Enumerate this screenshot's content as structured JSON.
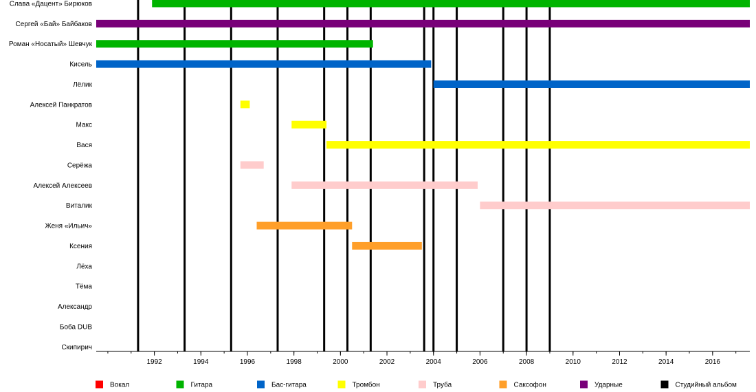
{
  "chart_data": {
    "type": "timeline",
    "x_range": [
      1989.5,
      2017.6
    ],
    "x_ticks": [
      1992,
      1994,
      1996,
      1998,
      2000,
      2002,
      2004,
      2006,
      2008,
      2010,
      2012,
      2014,
      2016
    ],
    "tick_labels": [
      "1992",
      "1994",
      "1996",
      "1998",
      "2000",
      "2002",
      "2004",
      "2006",
      "2008",
      "2010",
      "2012",
      "2014",
      "2016"
    ],
    "minor_ticks_per_year": true,
    "album_lines": [
      1991.3,
      1993.3,
      1995.3,
      1997.3,
      1999.3,
      2000.3,
      2001.3,
      2003.6,
      2004.0,
      2005.0,
      2007.0,
      2008.0,
      2009.0
    ],
    "members": [
      {
        "name": "Слава «Дацент» Бирюков",
        "role": "guitar",
        "start": 1991.9,
        "end": 2017.6
      },
      {
        "name": "Сергей «Бай» Байбаков",
        "role": "drums",
        "start": 1989.5,
        "end": 2017.6
      },
      {
        "name": "Роман «Носатый» Шевчук",
        "role": "guitar",
        "start": 1989.5,
        "end": 2001.4
      },
      {
        "name": "Кисель",
        "role": "bass",
        "start": 1989.5,
        "end": 2003.9
      },
      {
        "name": "Лёлик",
        "role": "bass",
        "start": 2004.0,
        "end": 2017.6
      },
      {
        "name": "Алексей Панкратов",
        "role": "trombone",
        "start": 1995.7,
        "end": 1996.1
      },
      {
        "name": "Макс",
        "role": "trombone",
        "start": 1997.9,
        "end": 1999.4
      },
      {
        "name": "Вася",
        "role": "trombone",
        "start": 1999.4,
        "end": 2017.6
      },
      {
        "name": "Серёжа",
        "role": "trumpet",
        "start": 1995.7,
        "end": 1996.7
      },
      {
        "name": "Алексей Алексеев",
        "role": "trumpet",
        "start": 1997.9,
        "end": 2005.9
      },
      {
        "name": "Виталик",
        "role": "trumpet",
        "start": 2006.0,
        "end": 2017.6
      },
      {
        "name": "Женя «Ильич»",
        "role": "sax",
        "start": 1996.4,
        "end": 2000.5
      },
      {
        "name": "Ксения",
        "role": "sax",
        "start": 2000.5,
        "end": 2003.5
      },
      {
        "name": "Лёха",
        "role": "",
        "start": null,
        "end": null
      },
      {
        "name": "Тёма",
        "role": "",
        "start": null,
        "end": null
      },
      {
        "name": "Александр",
        "role": "",
        "start": null,
        "end": null
      },
      {
        "name": "Боба DUB",
        "role": "",
        "start": null,
        "end": null
      },
      {
        "name": "Скипирич",
        "role": "",
        "start": null,
        "end": null
      }
    ],
    "legend": [
      {
        "key": "vocal",
        "label": "Вокал",
        "color": "#ff0000"
      },
      {
        "key": "guitar",
        "label": "Гитара",
        "color": "#00b400"
      },
      {
        "key": "bass",
        "label": "Бас-гитара",
        "color": "#0064c8"
      },
      {
        "key": "trombone",
        "label": "Тромбон",
        "color": "#ffff00"
      },
      {
        "key": "trumpet",
        "label": "Труба",
        "color": "#ffcccc"
      },
      {
        "key": "sax",
        "label": "Саксофон",
        "color": "#ff9f2a"
      },
      {
        "key": "drums",
        "label": "Ударные",
        "color": "#780078"
      },
      {
        "key": "studio",
        "label": "Студийный альбом",
        "color": "#000000"
      }
    ]
  }
}
